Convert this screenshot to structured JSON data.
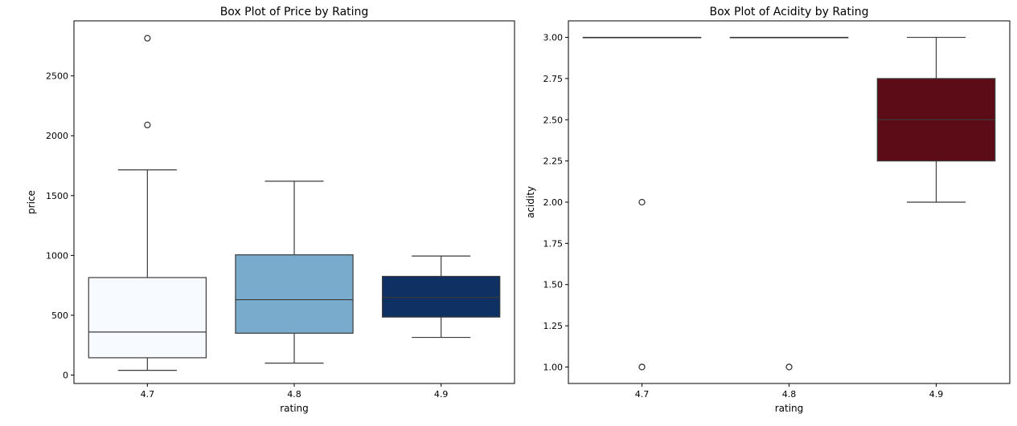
{
  "chart_data": [
    {
      "type": "box",
      "title": "Box Plot of Price by Rating",
      "xlabel": "rating",
      "ylabel": "price",
      "categories": [
        "4.7",
        "4.8",
        "4.9"
      ],
      "ylim": [
        -70,
        2960
      ],
      "yticks": [
        0,
        500,
        1000,
        1500,
        2000,
        2500
      ],
      "boxes": [
        {
          "category": "4.7",
          "whisker_low": 40,
          "q1": 145,
          "median": 360,
          "q3": 815,
          "whisker_high": 1715,
          "outliers": [
            2090,
            2815
          ],
          "color": "#f7fbff"
        },
        {
          "category": "4.8",
          "whisker_low": 100,
          "q1": 350,
          "median": 630,
          "q3": 1005,
          "whisker_high": 1620,
          "outliers": [],
          "color": "#79abcd"
        },
        {
          "category": "4.9",
          "whisker_low": 315,
          "q1": 485,
          "median": 650,
          "q3": 825,
          "whisker_high": 995,
          "outliers": [],
          "color": "#0f3063"
        }
      ]
    },
    {
      "type": "box",
      "title": "Box Plot of Acidity by Rating",
      "xlabel": "rating",
      "ylabel": "acidity",
      "categories": [
        "4.7",
        "4.8",
        "4.9"
      ],
      "ylim": [
        0.9,
        3.1
      ],
      "yticks": [
        1.0,
        1.25,
        1.5,
        1.75,
        2.0,
        2.25,
        2.5,
        2.75,
        3.0
      ],
      "boxes": [
        {
          "category": "4.7",
          "whisker_low": 3.0,
          "q1": 3.0,
          "median": 3.0,
          "q3": 3.0,
          "whisker_high": 3.0,
          "outliers": [
            2.0,
            1.0
          ],
          "color": "#fff5f0"
        },
        {
          "category": "4.8",
          "whisker_low": 3.0,
          "q1": 3.0,
          "median": 3.0,
          "q3": 3.0,
          "whisker_high": 3.0,
          "outliers": [
            1.0
          ],
          "color": "#fff5f0"
        },
        {
          "category": "4.9",
          "whisker_low": 2.0,
          "q1": 2.25,
          "median": 2.5,
          "q3": 2.75,
          "whisker_high": 3.0,
          "outliers": [],
          "color": "#5c0c16"
        }
      ]
    }
  ]
}
